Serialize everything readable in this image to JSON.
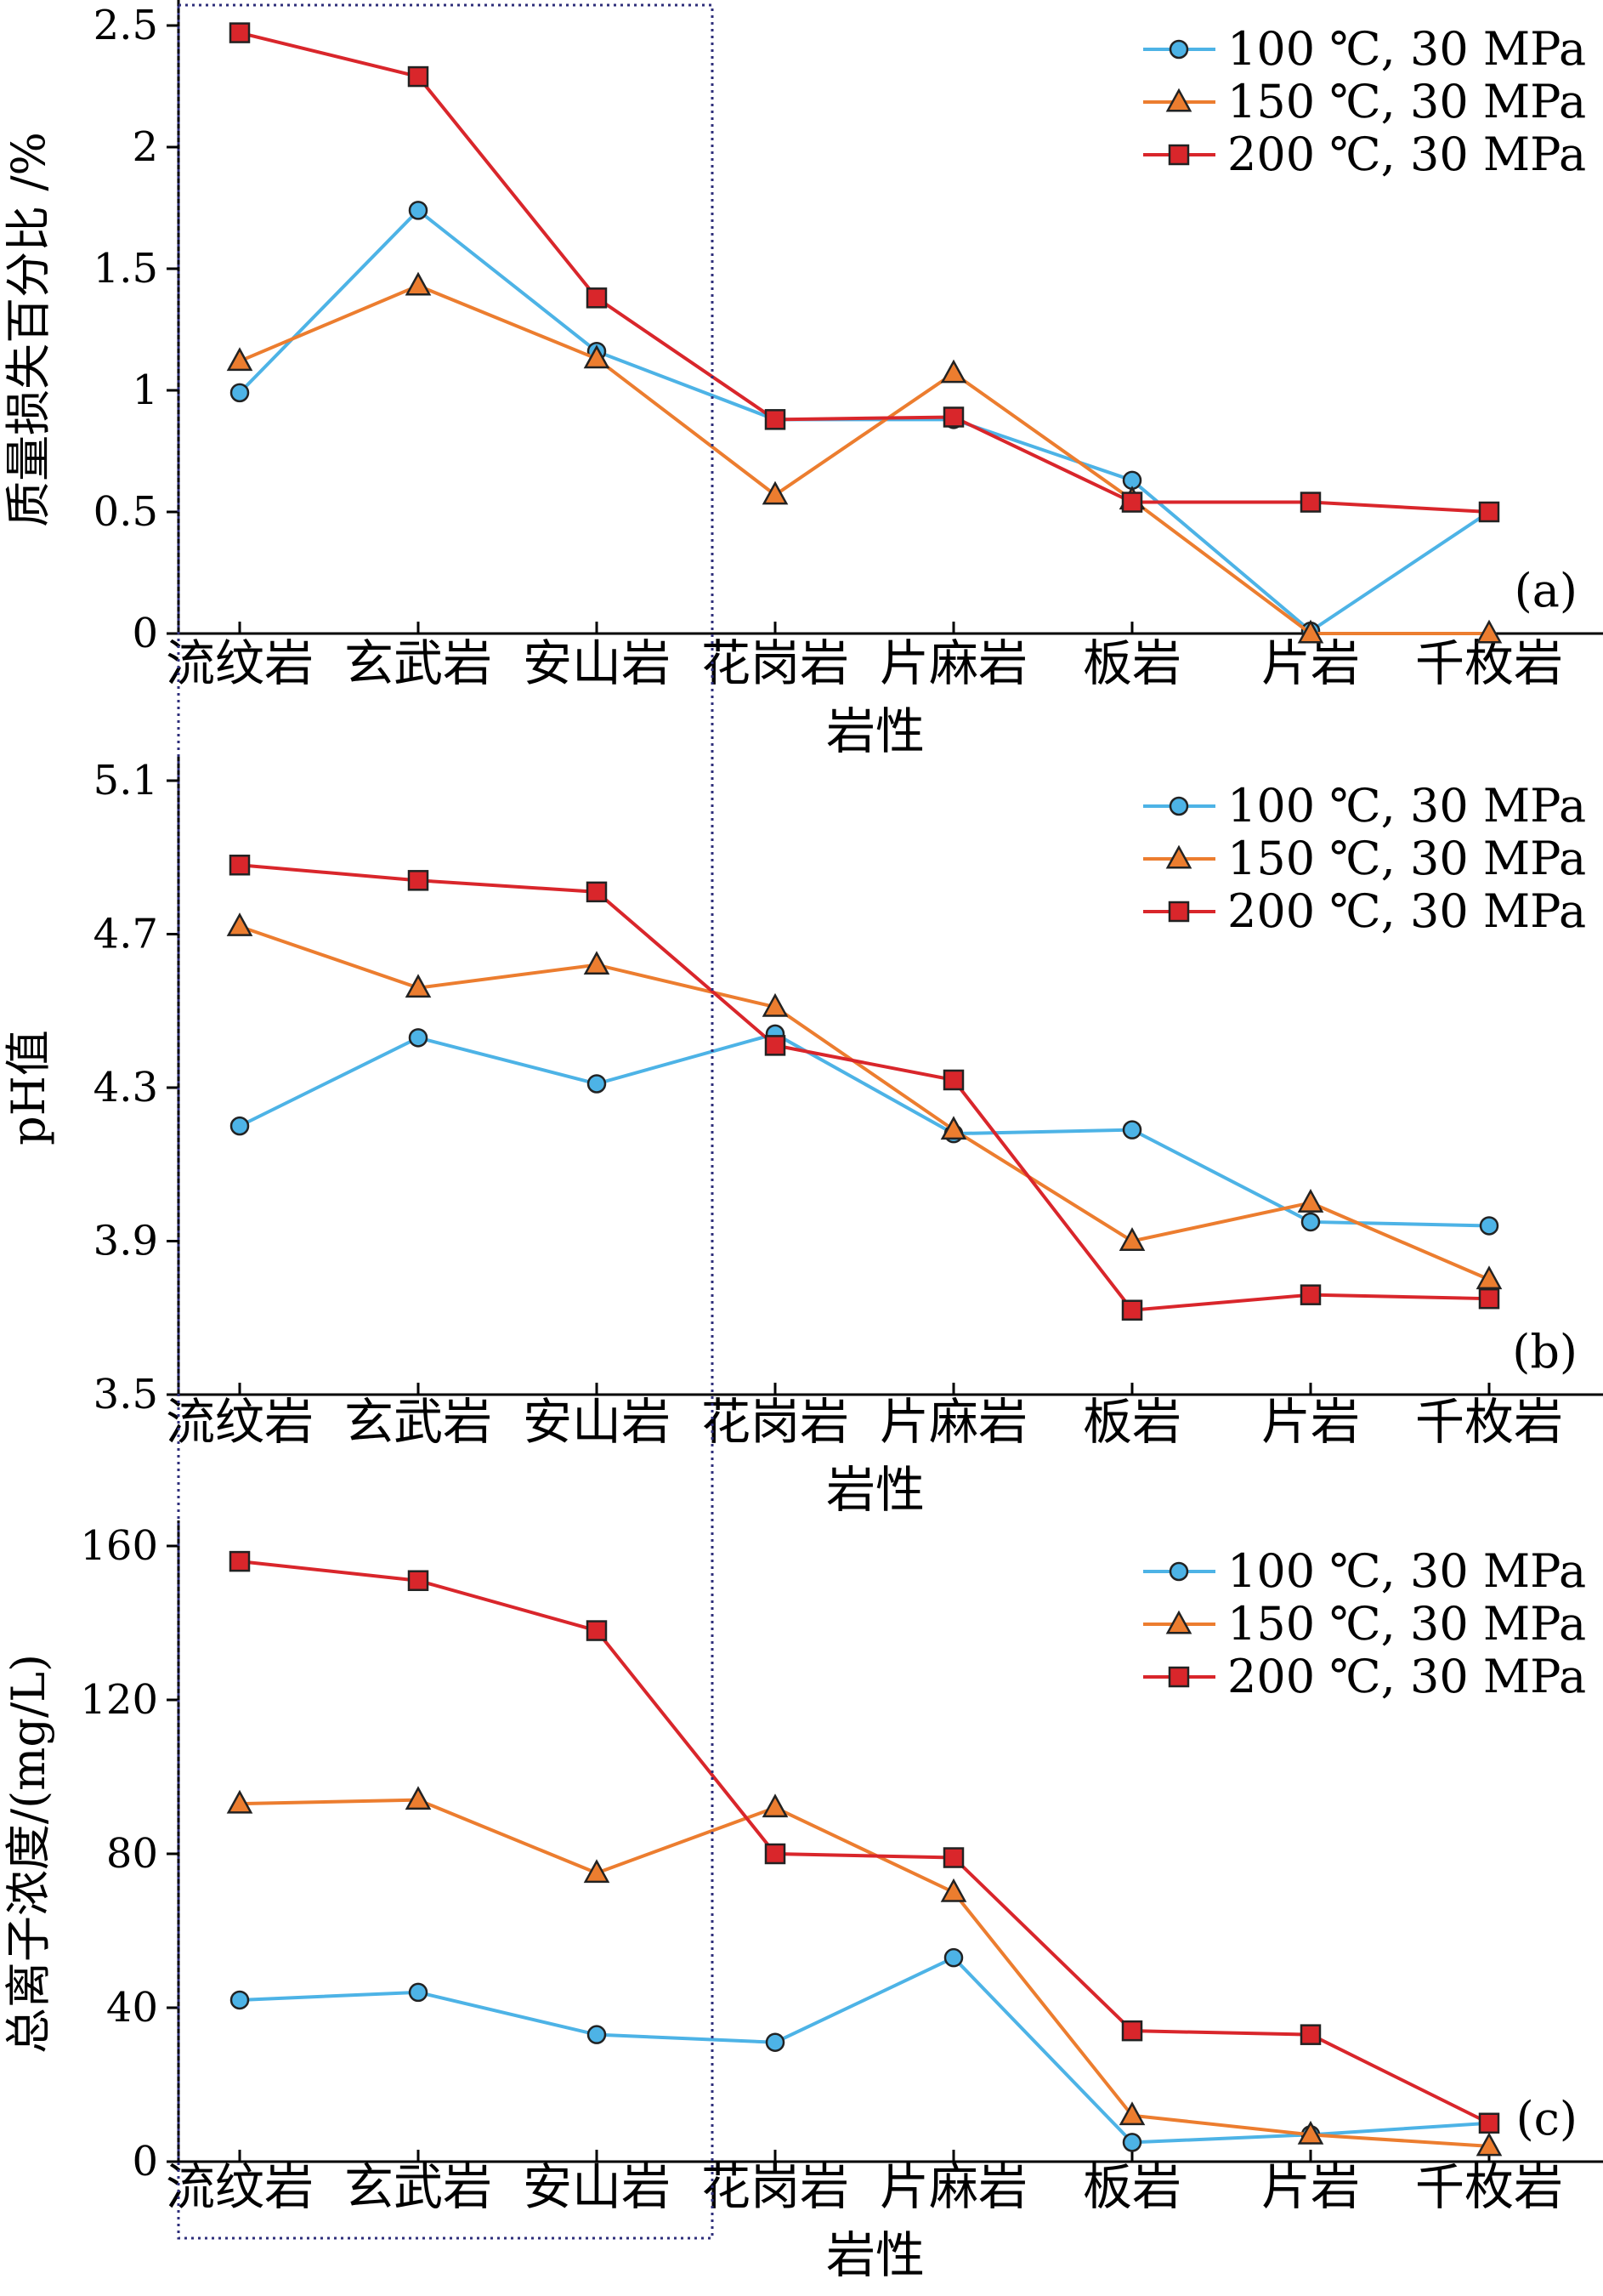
{
  "chart_data": [
    {
      "type": "line",
      "panel_label": "(a)",
      "ylabel": "质量损失百分比 /%",
      "xlabel": "岩性",
      "categories": [
        "流纹岩",
        "玄武岩",
        "安山岩",
        "花岗岩",
        "片麻岩",
        "板岩",
        "片岩",
        "千枚岩"
      ],
      "ylim": [
        0,
        2.5
      ],
      "yticks": [
        "0",
        "0.5",
        "1",
        "1.5",
        "2",
        "2.5"
      ],
      "series": [
        {
          "name": "100 ℃, 30 MPa",
          "marker": "circle",
          "color": "#4db3e6",
          "values": [
            0.99,
            1.74,
            1.16,
            0.88,
            0.88,
            0.63,
            0.01,
            0.5
          ]
        },
        {
          "name": "150 ℃, 30 MPa",
          "marker": "triangle",
          "color": "#ec7d2f",
          "values": [
            1.12,
            1.43,
            1.13,
            0.57,
            1.07,
            0.55,
            0.0,
            0.0
          ]
        },
        {
          "name": "200 ℃, 30 MPa",
          "marker": "square",
          "color": "#d9262b",
          "values": [
            2.47,
            2.29,
            1.38,
            0.88,
            0.89,
            0.54,
            0.54,
            0.5
          ]
        }
      ]
    },
    {
      "type": "line",
      "panel_label": "(b)",
      "ylabel": "pH值",
      "xlabel": "岩性",
      "categories": [
        "流纹岩",
        "玄武岩",
        "安山岩",
        "花岗岩",
        "片麻岩",
        "板岩",
        "片岩",
        "千枚岩"
      ],
      "ylim": [
        3.5,
        5.1
      ],
      "yticks": [
        "3.5",
        "3.9",
        "4.3",
        "4.7",
        "5.1"
      ],
      "series": [
        {
          "name": "100 ℃, 30 MPa",
          "marker": "circle",
          "color": "#4db3e6",
          "values": [
            4.2,
            4.43,
            4.31,
            4.44,
            4.18,
            4.19,
            3.95,
            3.94
          ]
        },
        {
          "name": "150 ℃, 30 MPa",
          "marker": "triangle",
          "color": "#ec7d2f",
          "values": [
            4.72,
            4.56,
            4.62,
            4.51,
            4.19,
            3.9,
            4.0,
            3.8
          ]
        },
        {
          "name": "200 ℃, 30 MPa",
          "marker": "square",
          "color": "#d9262b",
          "values": [
            4.88,
            4.84,
            4.81,
            4.41,
            4.32,
            3.72,
            3.76,
            3.75
          ]
        }
      ]
    },
    {
      "type": "line",
      "panel_label": "(c)",
      "ylabel": "总离子浓度/(mg/L)",
      "xlabel": "岩性",
      "categories": [
        "流纹岩",
        "玄武岩",
        "安山岩",
        "花岗岩",
        "片麻岩",
        "板岩",
        "片岩",
        "千枚岩"
      ],
      "ylim": [
        0,
        160
      ],
      "yticks": [
        "0",
        "40",
        "80",
        "120",
        "160"
      ],
      "series": [
        {
          "name": "100 ℃, 30 MPa",
          "marker": "circle",
          "color": "#4db3e6",
          "values": [
            42,
            44,
            33,
            31,
            53,
            5,
            7,
            10
          ]
        },
        {
          "name": "150 ℃, 30 MPa",
          "marker": "triangle",
          "color": "#ec7d2f",
          "values": [
            93,
            94,
            75,
            92,
            70,
            12,
            7,
            4
          ]
        },
        {
          "name": "200 ℃, 30 MPa",
          "marker": "square",
          "color": "#d9262b",
          "values": [
            156,
            151,
            138,
            80,
            79,
            34,
            33,
            10
          ]
        }
      ]
    }
  ]
}
